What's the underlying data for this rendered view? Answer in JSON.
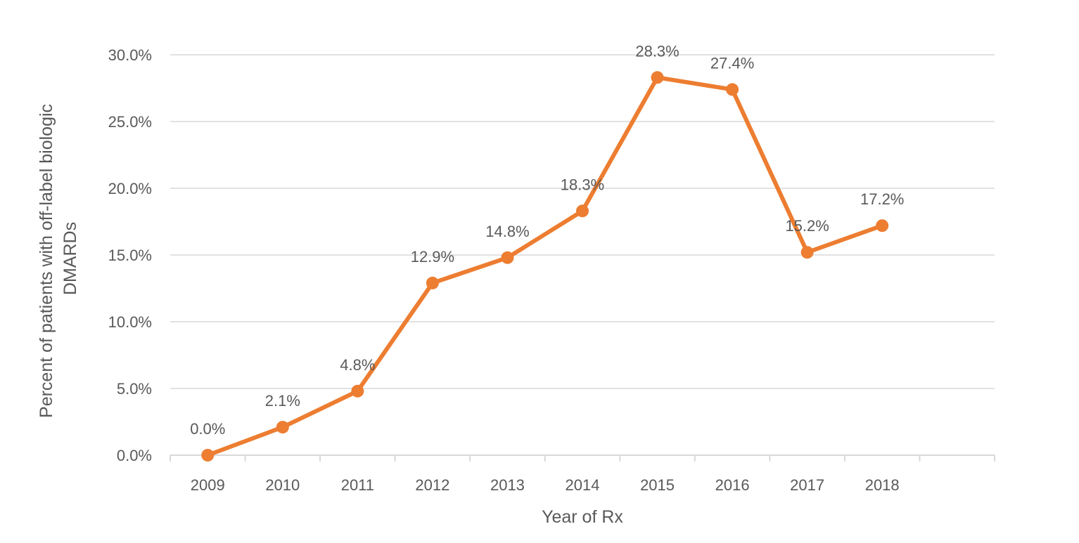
{
  "chart_data": {
    "type": "line",
    "title": "",
    "xlabel": "Year of Rx",
    "ylabel_lines": [
      "Percent of patients with off-label biologic",
      "DMARDs"
    ],
    "categories": [
      "2009",
      "2010",
      "2011",
      "2012",
      "2013",
      "2014",
      "2015",
      "2016",
      "2017",
      "2018"
    ],
    "series": [
      {
        "values": [
          0.0,
          2.1,
          4.8,
          12.9,
          14.8,
          18.3,
          28.3,
          27.4,
          15.2,
          17.2
        ],
        "data_labels": [
          "0.0%",
          "2.1%",
          "4.8%",
          "12.9%",
          "14.8%",
          "18.3%",
          "28.3%",
          "27.4%",
          "15.2%",
          "17.2%"
        ],
        "color": "#ED7D31"
      }
    ],
    "ylim": [
      0,
      30
    ],
    "yticks": [
      0,
      5,
      10,
      15,
      20,
      25,
      30
    ],
    "ytick_labels": [
      "0.0%",
      "5.0%",
      "10.0%",
      "15.0%",
      "20.0%",
      "25.0%",
      "30.0%"
    ],
    "grid": true,
    "legend": "none",
    "colors": {
      "line": "#ED7D31",
      "grid": "#D9D9D9",
      "text": "#595959"
    }
  }
}
